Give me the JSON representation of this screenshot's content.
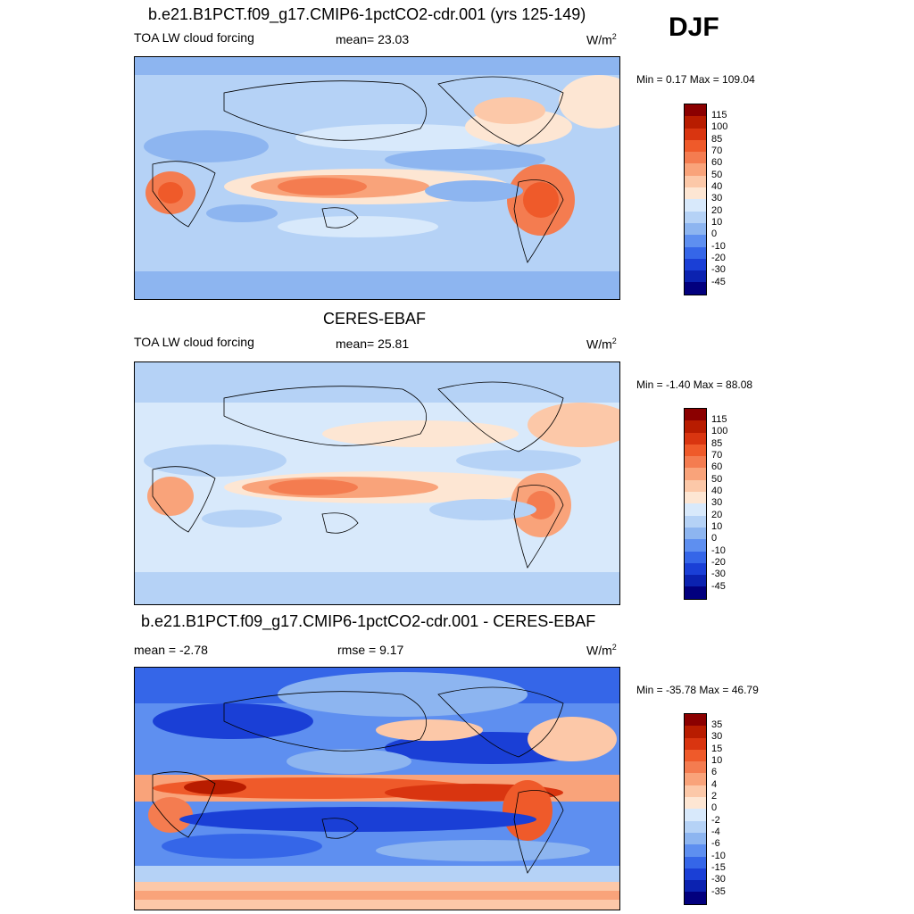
{
  "season": "DJF",
  "units_base": "W/m",
  "units_exp": "2",
  "panels": [
    {
      "title": "b.e21.B1PCT.f09_g17.CMIP6-1pctCO2-cdr.001 (yrs 125-149)",
      "left_label": "TOA LW cloud forcing",
      "center_label": "mean=  23.03",
      "minmax": "Min =   0.17 Max = 109.04",
      "levels": [
        "115",
        "100",
        "85",
        "70",
        "60",
        "50",
        "40",
        "30",
        "20",
        "10",
        "0",
        "-10",
        "-20",
        "-30",
        "-45"
      ]
    },
    {
      "title": "CERES-EBAF",
      "left_label": "TOA LW cloud forcing",
      "center_label": "mean=  25.81",
      "minmax": "Min =  -1.40 Max =  88.08",
      "levels": [
        "115",
        "100",
        "85",
        "70",
        "60",
        "50",
        "40",
        "30",
        "20",
        "10",
        "0",
        "-10",
        "-20",
        "-30",
        "-45"
      ]
    },
    {
      "title": "b.e21.B1PCT.f09_g17.CMIP6-1pctCO2-cdr.001 - CERES-EBAF",
      "left_label": "mean =  -2.78",
      "center_label": "rmse =   9.17",
      "minmax": "Min = -35.78 Max =  46.79",
      "levels": [
        "35",
        "30",
        "15",
        "10",
        "6",
        "4",
        "2",
        "0",
        "-2",
        "-4",
        "-6",
        "-10",
        "-15",
        "-30",
        "-35"
      ]
    }
  ],
  "colorbar_colors": [
    "#8b0000",
    "#b81c00",
    "#d93510",
    "#ef5a2a",
    "#f47c50",
    "#f9a37a",
    "#fcc8a8",
    "#fde6d3",
    "#d8e9fb",
    "#b5d2f6",
    "#8db5f0",
    "#5e8ff0",
    "#3566e8",
    "#1a3fd6",
    "#0b22b0",
    "#02007e"
  ]
}
